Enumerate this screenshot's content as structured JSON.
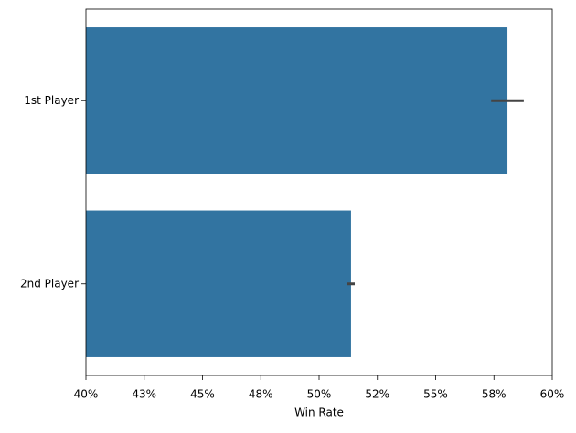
{
  "chart_data": {
    "type": "barh",
    "xlabel": "Win Rate",
    "categories": [
      "1st Player",
      "2nd Player"
    ],
    "values": [
      58.08,
      51.37
    ],
    "errors": [
      0.7,
      0.16
    ],
    "color": "#3274a1",
    "error_color": "#444444",
    "xlim": [
      40,
      60
    ],
    "xticks": [
      {
        "value": 40,
        "label": "40%"
      },
      {
        "value": 42.5,
        "label": "43%"
      },
      {
        "value": 45,
        "label": "45%"
      },
      {
        "value": 47.5,
        "label": "48%"
      },
      {
        "value": 50,
        "label": "50%"
      },
      {
        "value": 52.5,
        "label": "52%"
      },
      {
        "value": 55,
        "label": "55%"
      },
      {
        "value": 57.5,
        "label": "58%"
      },
      {
        "value": 60,
        "label": "60%"
      }
    ]
  }
}
